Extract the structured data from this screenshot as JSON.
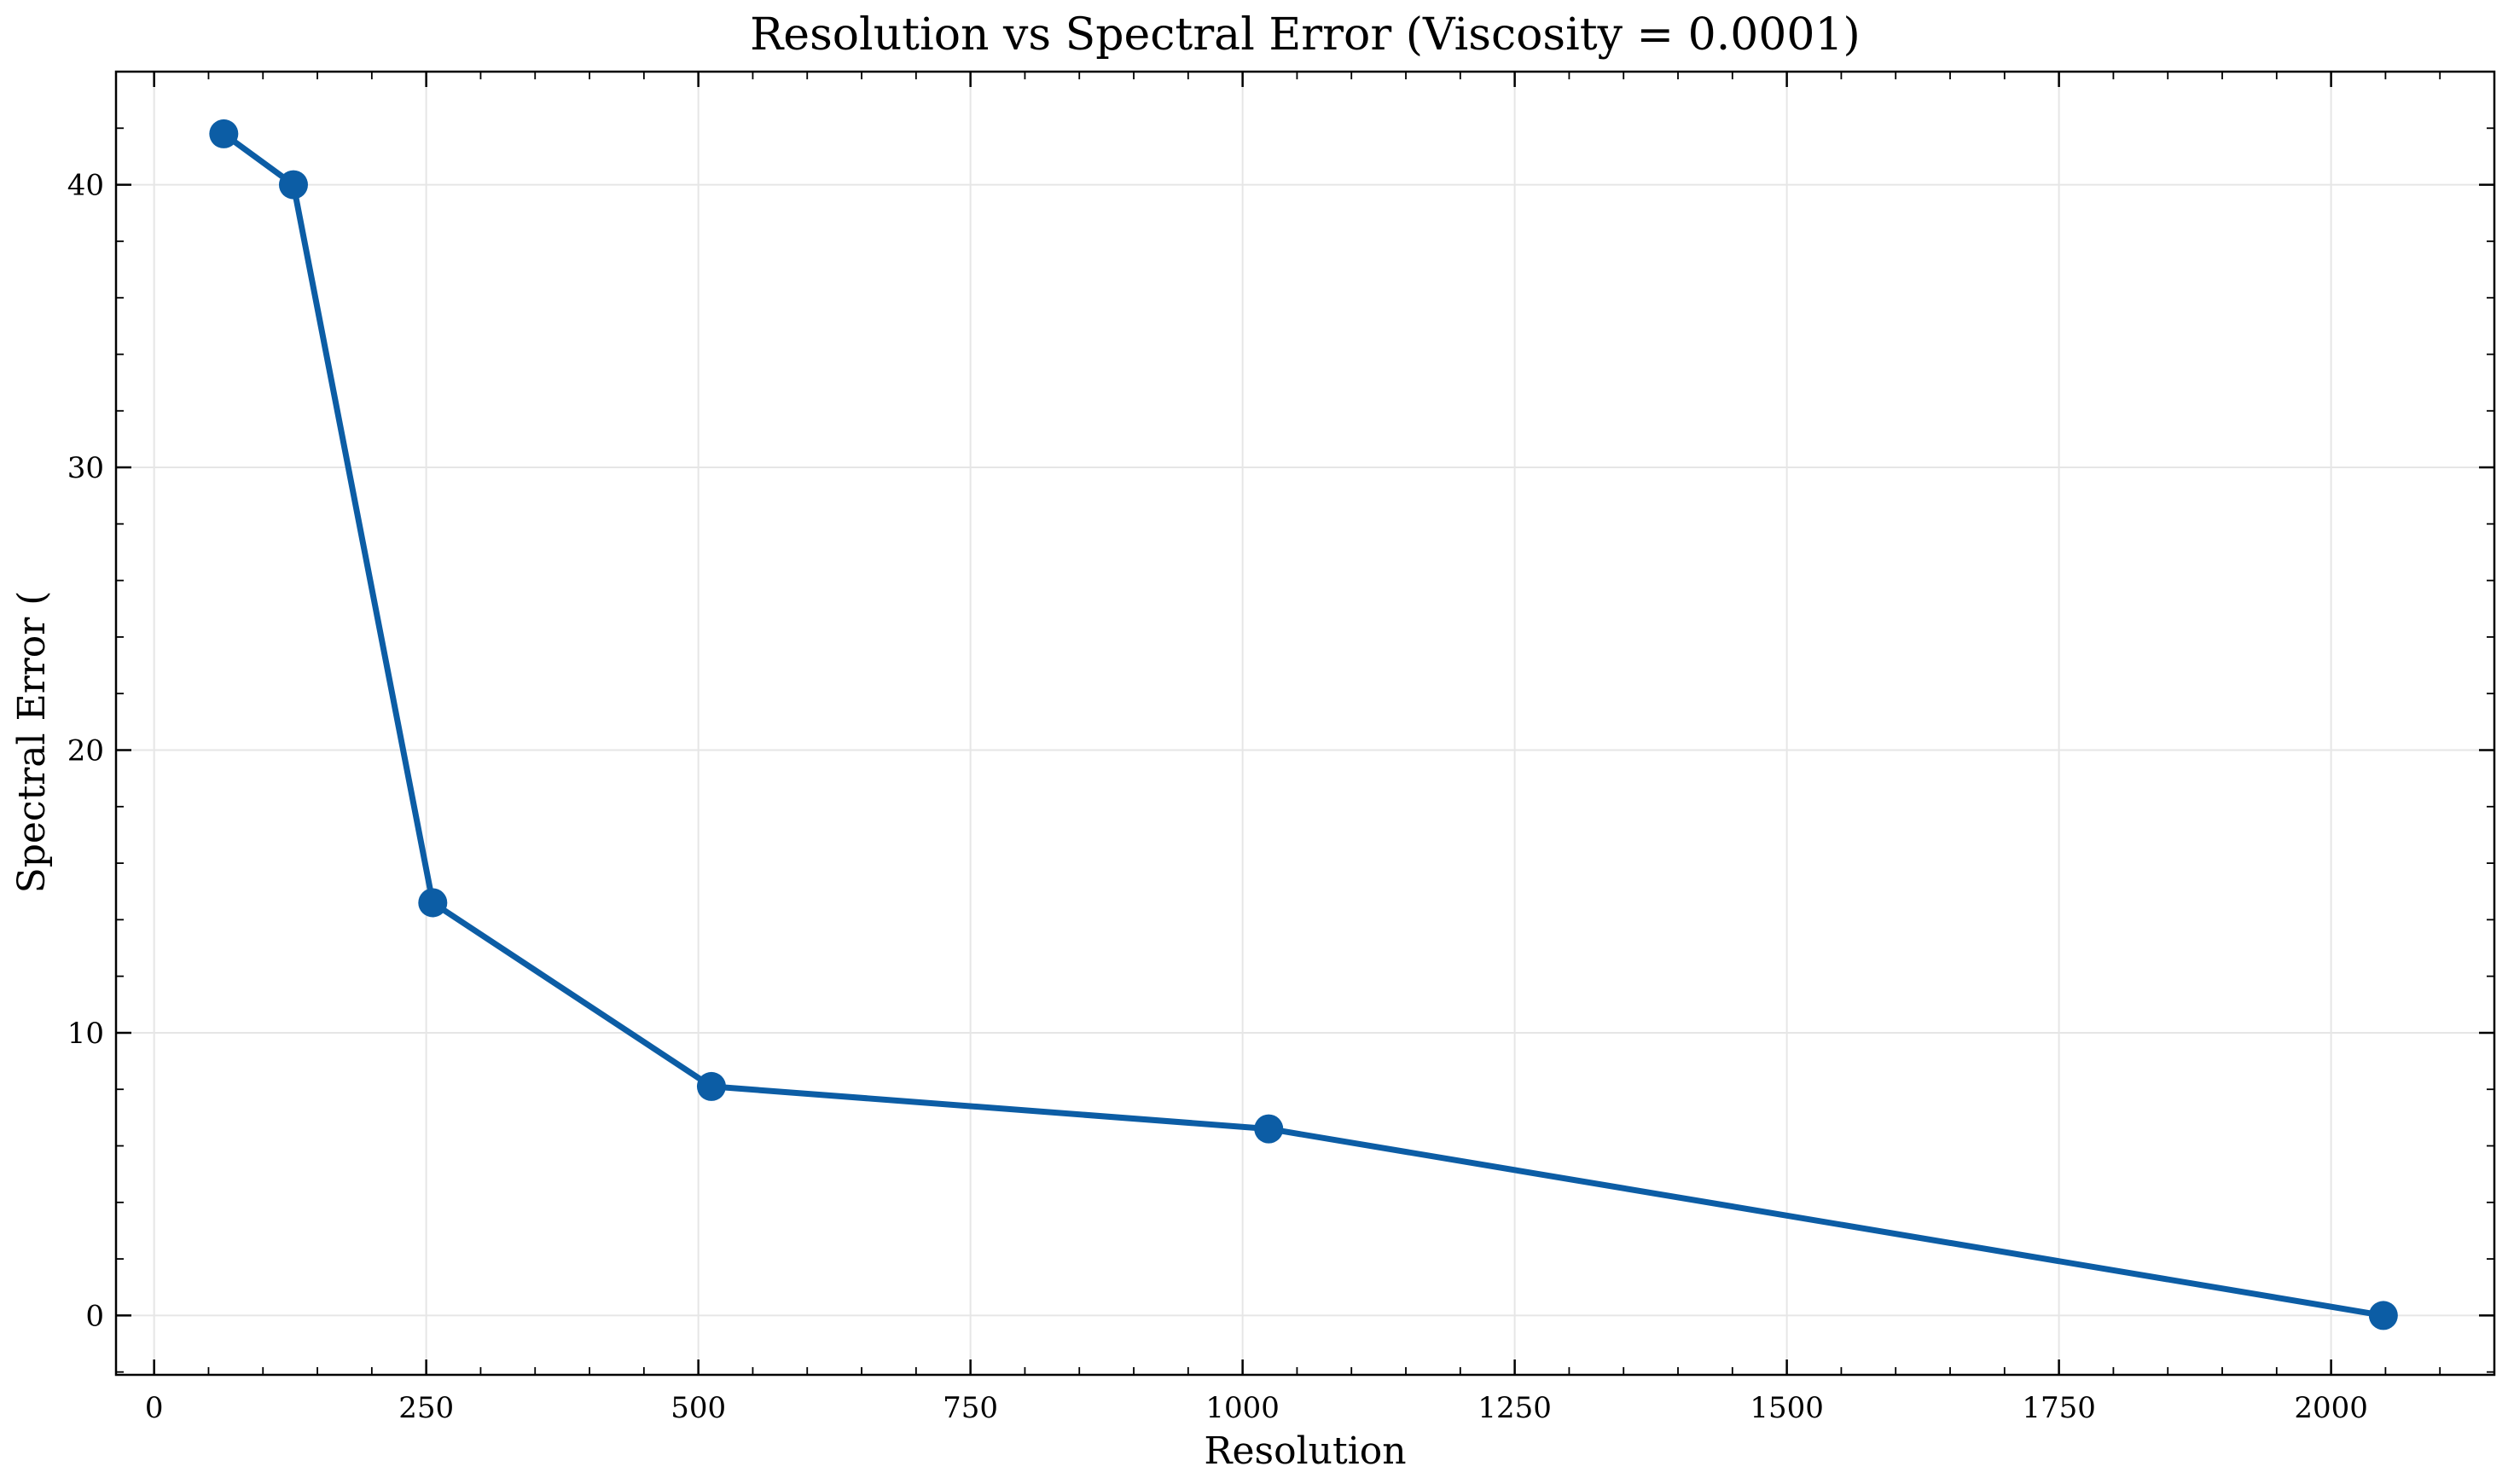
{
  "chart_data": {
    "type": "line",
    "title": "Resolution vs Spectral Error (Viscosity = 0.0001)",
    "xlabel": "Resolution",
    "ylabel": "Spectral Error (",
    "xlim": [
      -35,
      2150
    ],
    "ylim": [
      -2.1,
      44
    ],
    "x_ticks": [
      0,
      250,
      500,
      750,
      1000,
      1250,
      1500,
      1750,
      2000
    ],
    "y_ticks": [
      0,
      10,
      20,
      30,
      40
    ],
    "x_minor_step": 50,
    "y_minor_step": 2,
    "grid": true,
    "marker": "circle",
    "color": "#0c5da5",
    "series": [
      {
        "x": [
          64,
          128,
          256,
          512,
          1024,
          2048
        ],
        "y": [
          41.8,
          40.0,
          14.6,
          8.1,
          6.6,
          0.0
        ]
      }
    ]
  }
}
